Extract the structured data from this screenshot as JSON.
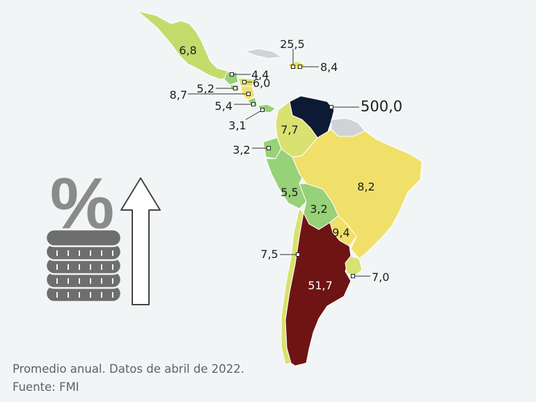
{
  "colors": {
    "background": "#f2f5f6",
    "scale_low_green": "#97d178",
    "scale_light_green": "#c2dc6c",
    "scale_yellow_green": "#d9e170",
    "scale_yellow": "#e4e06a",
    "scale_high_yellow": "#f0e069",
    "very_high_dark_red": "#6e1414",
    "extreme_navy": "#0c1b33",
    "no_data_grey": "#cfd3d7",
    "label_text": "#1e1e1e",
    "icon_grey": "#8b8b8b"
  },
  "map": {
    "region_values": {
      "mexico": "6,8",
      "guatemala": "4,4",
      "honduras": "6,0",
      "el_salvador": "5,2",
      "nicaragua": "8,7",
      "costa_rica": "5,4",
      "panama": "3,1",
      "cuba": "25,5",
      "dominican_republic": "8,4",
      "venezuela": "500,0",
      "colombia": "7,7",
      "ecuador": "3,2",
      "peru": "5,5",
      "bolivia": "3,2",
      "brazil": "8,2",
      "paraguay": "9,4",
      "chile": "7,5",
      "argentina": "51,7",
      "uruguay": "7,0"
    }
  },
  "icon": {
    "name": "percent-coins-arrow-up-icon"
  },
  "footer": {
    "note": "Promedio anual. Datos de abril de 2022.",
    "source": "Fuente: FMI"
  }
}
